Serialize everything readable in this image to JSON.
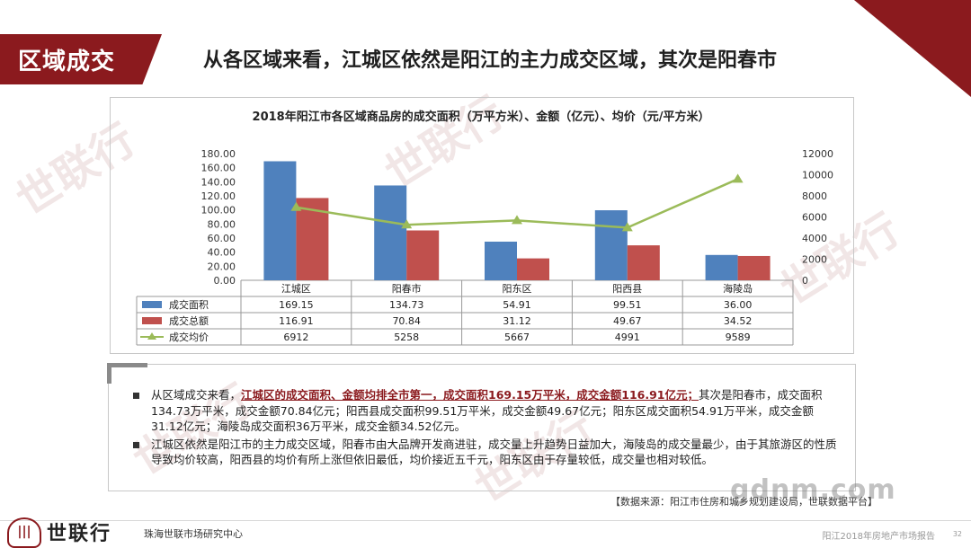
{
  "section_tag": "区域成交",
  "heading": "从各区域来看，江城区依然是阳江的主力成交区域，其次是阳春市",
  "watermark": "世联行",
  "colors": {
    "brand": "#8b1a1e",
    "area": "#4f81bd",
    "amount": "#c0504d",
    "price": "#9bbb59"
  },
  "chart_data": {
    "type": "bar",
    "title": "2018年阳江市各区域商品房的成交面积（万平方米）、金额（亿元）、均价（元/平方米）",
    "categories": [
      "江城区",
      "阳春市",
      "阳东区",
      "阳西县",
      "海陵岛"
    ],
    "left_axis": {
      "min": 0,
      "max": 180,
      "step": 20,
      "ticks": [
        "0.00",
        "20.00",
        "40.00",
        "60.00",
        "80.00",
        "100.00",
        "120.00",
        "140.00",
        "160.00",
        "180.00"
      ]
    },
    "right_axis": {
      "min": 0,
      "max": 12000,
      "step": 2000,
      "ticks": [
        "0",
        "2000",
        "4000",
        "6000",
        "8000",
        "10000",
        "12000"
      ]
    },
    "series": [
      {
        "name": "成交面积",
        "kind": "bar",
        "axis": "left",
        "values": [
          169.15,
          134.73,
          54.91,
          99.51,
          36.0
        ],
        "labels": [
          "169.15",
          "134.73",
          "54.91",
          "99.51",
          "36.00"
        ]
      },
      {
        "name": "成交总额",
        "kind": "bar",
        "axis": "left",
        "values": [
          116.91,
          70.84,
          31.12,
          49.67,
          34.52
        ],
        "labels": [
          "116.91",
          "70.84",
          "31.12",
          "49.67",
          "34.52"
        ]
      },
      {
        "name": "成交均价",
        "kind": "line",
        "axis": "right",
        "values": [
          6912,
          5258,
          5667,
          4991,
          9589
        ],
        "labels": [
          "6912",
          "5258",
          "5667",
          "4991",
          "9589"
        ]
      }
    ],
    "grid": false,
    "legend": "data-table"
  },
  "bullets": [
    {
      "pre": "从区域成交来看，",
      "highlight": "江城区的成交面积、金额均排全市第一，成交面积169.15万平米，成交金额116.91亿元；",
      "post": "其次是阳春市，成交面积134.73万平米，成交金额70.84亿元；阳西县成交面积99.51万平米，成交金额49.67亿元；阳东区成交面积54.91万平米，成交金额31.12亿元；海陵岛成交面积36万平米，成交金额34.52亿元。"
    },
    {
      "pre": "江城区依然是阳江市的主力成交区域，阳春市由大品牌开发商进驻，成交量上升趋势日益加大，海陵岛的成交量最少，由于其旅游区的性质导致均价较高，阳西县的均价有所上涨但依旧最低，均价接近五千元，阳东区由于存量较低，成交量也相对较低。",
      "highlight": "",
      "post": ""
    }
  ],
  "source": "【数据来源：阳江市住房和城乡规划建设局，世联数据平台】",
  "footer": {
    "logo": "世联行",
    "company": "珠海世联市场研究中心",
    "report": "阳江2018年房地产市场报告",
    "page": "32"
  },
  "site_watermark": "gdnm.com"
}
